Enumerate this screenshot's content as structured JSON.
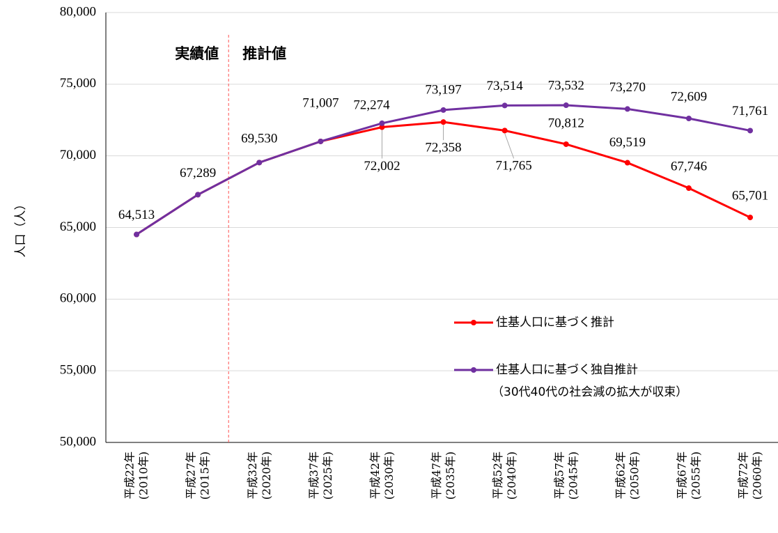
{
  "chart_data": {
    "type": "line",
    "y_label": "人口（人）",
    "categories": [
      [
        "平成22年",
        "(2010年)"
      ],
      [
        "平成27年",
        "(2015年)"
      ],
      [
        "平成32年",
        "(2020年)"
      ],
      [
        "平成37年",
        "(2025年)"
      ],
      [
        "平成42年",
        "(2030年)"
      ],
      [
        "平成47年",
        "(2035年)"
      ],
      [
        "平成52年",
        "(2040年)"
      ],
      [
        "平成57年",
        "(2045年)"
      ],
      [
        "平成62年",
        "(2050年)"
      ],
      [
        "平成67年",
        "(2055年)"
      ],
      [
        "平成72年",
        "(2060年)"
      ]
    ],
    "series": [
      {
        "name": "住基人口に基づく推計",
        "color": "#ff0000",
        "values": [
          64513,
          67289,
          69530,
          71007,
          72002,
          72358,
          71765,
          70812,
          69519,
          67746,
          65701
        ],
        "value_labels": [
          null,
          null,
          null,
          null,
          "72,002",
          "72,358",
          "71,765",
          "70,812",
          "69,519",
          "67,746",
          "65,701"
        ]
      },
      {
        "name": "住基人口に基づく独自推計",
        "color": "#7030a0",
        "values": [
          64513,
          67289,
          69530,
          71007,
          72274,
          73197,
          73514,
          73532,
          73270,
          72609,
          71761
        ],
        "value_labels": [
          "64,513",
          "67,289",
          "69,530",
          "71,007",
          "72,274",
          "73,197",
          "73,514",
          "73,532",
          "73,270",
          "72,609",
          "71,761"
        ]
      }
    ],
    "annotations": [
      "実績値",
      "推計値",
      "（30代40代の社会減の拡大が収束）"
    ],
    "ylim": [
      50000,
      80000
    ],
    "yticks": [
      {
        "value": 50000,
        "label": "50,000"
      },
      {
        "value": 55000,
        "label": "55,000"
      },
      {
        "value": 60000,
        "label": "60,000"
      },
      {
        "value": 65000,
        "label": "65,000"
      },
      {
        "value": 70000,
        "label": "70,000"
      },
      {
        "value": 75000,
        "label": "75,000"
      },
      {
        "value": 80000,
        "label": "80,000"
      }
    ],
    "grid": true
  }
}
